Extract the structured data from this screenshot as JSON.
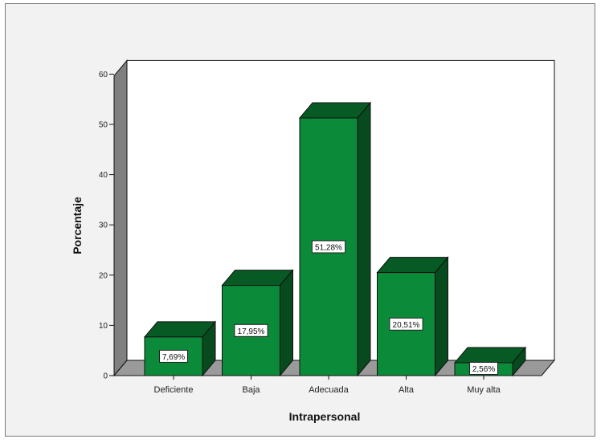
{
  "chart_data": {
    "type": "bar",
    "xlabel": "Intrapersonal",
    "ylabel": "Porcentaje",
    "categories": [
      "Deficiente",
      "Baja",
      "Adecuada",
      "Alta",
      "Muy alta"
    ],
    "values": [
      7.69,
      17.95,
      51.28,
      20.51,
      2.56
    ],
    "data_labels": [
      "7,69%",
      "17,95%",
      "51,28%",
      "20,51%",
      "2,56%"
    ],
    "ylim": [
      0,
      60
    ],
    "yticks": [
      "0",
      "10",
      "20",
      "30",
      "40",
      "50",
      "60"
    ],
    "grid": false,
    "style": "3d",
    "colors": {
      "bar_front": "#0b8a3a",
      "bar_top": "#075a24",
      "bar_side": "#064a1e",
      "plot_bg": "#ffffff",
      "back_wall_side": "#808080",
      "floor": "#9a9a9a"
    }
  }
}
